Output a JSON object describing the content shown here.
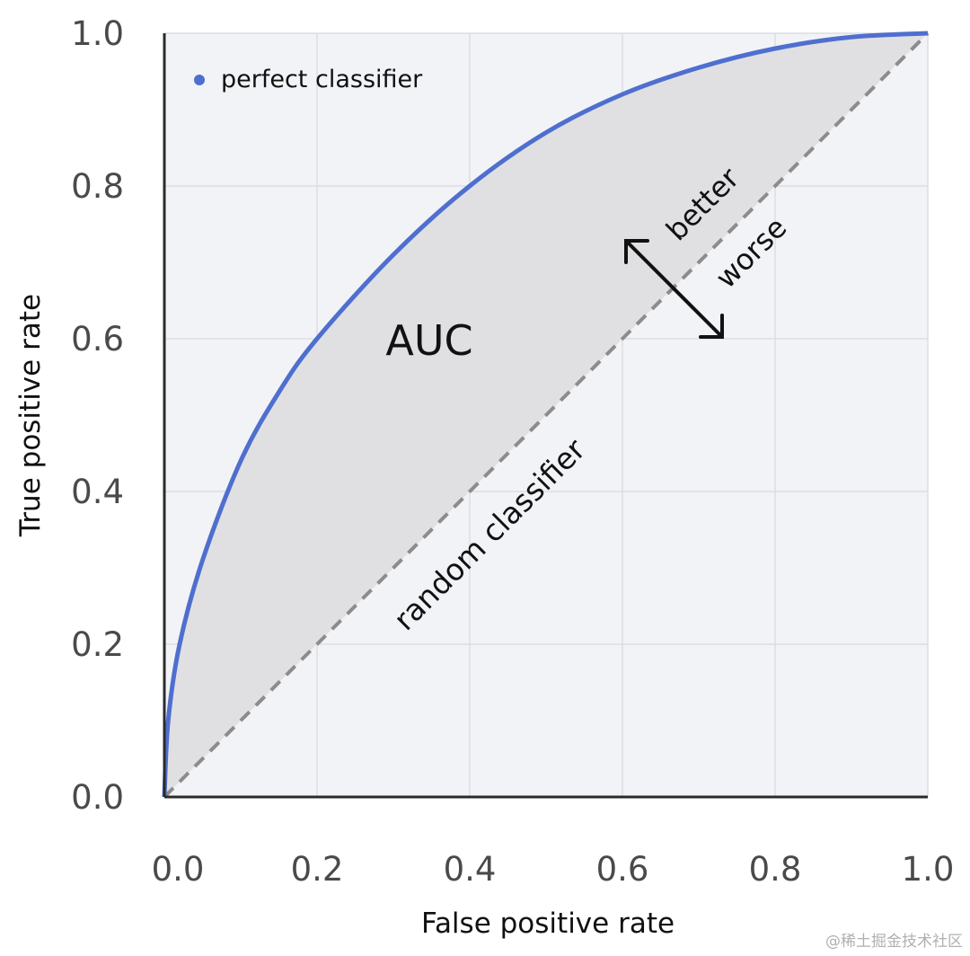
{
  "chart_data": {
    "type": "line",
    "title": "",
    "xlabel": "False positive rate",
    "ylabel": "True positive rate",
    "xlim": [
      0.0,
      1.0
    ],
    "ylim": [
      0.0,
      1.0
    ],
    "x_ticks": [
      "0.0",
      "0.2",
      "0.4",
      "0.6",
      "0.8",
      "1.0"
    ],
    "y_ticks": [
      "0.0",
      "0.2",
      "0.4",
      "0.6",
      "0.8",
      "1.0"
    ],
    "grid": true,
    "series": [
      {
        "name": "perfect classifier",
        "color": "#4f6fcf",
        "style": "solid",
        "x": [
          0.0,
          0.005,
          0.02,
          0.05,
          0.1,
          0.15,
          0.2,
          0.3,
          0.4,
          0.5,
          0.6,
          0.7,
          0.8,
          0.9,
          1.0
        ],
        "y": [
          0.0,
          0.1,
          0.2,
          0.31,
          0.44,
          0.53,
          0.6,
          0.71,
          0.8,
          0.87,
          0.92,
          0.955,
          0.98,
          0.995,
          1.0
        ]
      },
      {
        "name": "random classifier",
        "color": "#8c8c8c",
        "style": "dashed",
        "x": [
          0.0,
          1.0
        ],
        "y": [
          0.0,
          1.0
        ]
      }
    ],
    "shaded_region": {
      "label": "AUC",
      "color": "#e0e0e3"
    },
    "legend": {
      "placement": "top-left",
      "entries": [
        "perfect classifier"
      ]
    },
    "annotations": {
      "auc": "AUC",
      "random": "random classifier",
      "better": "better",
      "worse": "worse"
    }
  },
  "watermark": "@稀土掘金技术社区"
}
